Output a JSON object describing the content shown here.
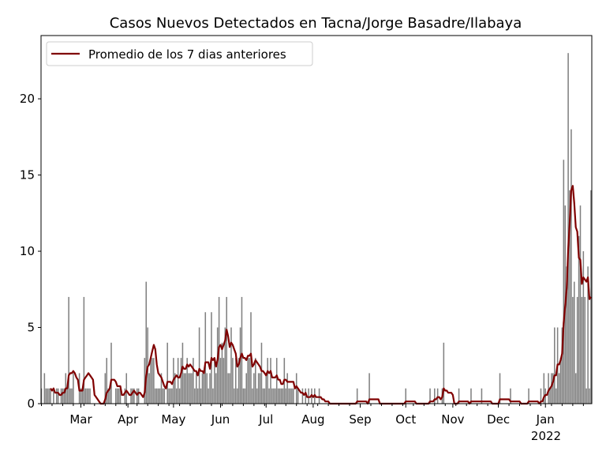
{
  "chart_data": {
    "type": "bar",
    "title": "Casos Nuevos Detectados en Tacna/Jorge Basadre/Ilabaya",
    "xlabel": "",
    "ylabel": "",
    "start_date": "2021-02-03",
    "ylim": [
      0,
      24.15
    ],
    "yticks": [
      0,
      5,
      10,
      15,
      20
    ],
    "xticks": [
      {
        "label": "Mar",
        "date": "2021-03-01"
      },
      {
        "label": "Apr",
        "date": "2021-04-01"
      },
      {
        "label": "May",
        "date": "2021-05-01"
      },
      {
        "label": "Jun",
        "date": "2021-06-01"
      },
      {
        "label": "Jul",
        "date": "2021-07-01"
      },
      {
        "label": "Aug",
        "date": "2021-08-01"
      },
      {
        "label": "Sep",
        "date": "2021-09-01"
      },
      {
        "label": "Oct",
        "date": "2021-10-01"
      },
      {
        "label": "Nov",
        "date": "2021-11-01"
      },
      {
        "label": "Dec",
        "date": "2021-12-01"
      },
      {
        "label": "Jan",
        "date": "2022-01-01"
      }
    ],
    "year_label": "2022",
    "bar_color": "#808080",
    "line_color": "#800000",
    "rolling_window": 7,
    "legend": {
      "label": "Promedio de los 7 dias anteriores",
      "placement": "upper-left"
    },
    "daily_values": [
      1,
      0,
      2,
      1,
      1,
      1,
      1,
      0,
      1,
      0,
      1,
      1,
      0,
      1,
      1,
      1,
      2,
      1,
      7,
      1,
      1,
      2,
      0,
      0,
      0,
      2,
      1,
      1,
      7,
      1,
      1,
      1,
      1,
      0,
      0,
      0,
      0,
      0,
      0,
      0,
      0,
      0,
      2,
      3,
      1,
      1,
      4,
      0,
      0,
      1,
      1,
      1,
      1,
      0,
      0,
      1,
      2,
      0,
      0,
      1,
      1,
      1,
      0,
      1,
      1,
      0,
      0,
      0,
      3,
      8,
      5,
      2,
      3,
      3,
      3,
      1,
      1,
      1,
      1,
      2,
      1,
      1,
      0,
      4,
      1,
      1,
      1,
      3,
      2,
      1,
      3,
      1,
      3,
      4,
      2,
      2,
      3,
      2,
      2,
      2,
      3,
      1,
      2,
      1,
      5,
      1,
      2,
      2,
      6,
      2,
      1,
      2,
      6,
      1,
      3,
      2,
      5,
      7,
      3,
      4,
      3,
      5,
      7,
      2,
      2,
      5,
      3,
      1,
      3,
      1,
      3,
      5,
      7,
      1,
      1,
      2,
      3,
      3,
      6,
      1,
      2,
      3,
      1,
      2,
      2,
      4,
      1,
      1,
      2,
      3,
      1,
      3,
      1,
      1,
      1,
      3,
      1,
      1,
      1,
      1,
      3,
      1,
      2,
      1,
      1,
      1,
      1,
      0,
      2,
      1,
      0,
      0,
      1,
      0,
      1,
      0,
      1,
      0,
      1,
      0,
      1,
      0,
      0,
      1,
      0,
      0,
      0,
      0,
      0,
      0,
      0,
      0,
      0,
      0,
      0,
      0,
      0,
      0,
      0,
      0,
      0,
      0,
      0,
      0,
      0,
      0,
      0,
      0,
      1,
      0,
      0,
      0,
      0,
      0,
      0,
      0,
      2,
      0,
      0,
      0,
      0,
      0,
      0,
      0,
      0,
      0,
      0,
      0,
      0,
      0,
      0,
      0,
      0,
      0,
      0,
      0,
      0,
      0,
      0,
      0,
      1,
      0,
      0,
      0,
      0,
      0,
      0,
      0,
      0,
      0,
      0,
      0,
      0,
      0,
      0,
      0,
      1,
      0,
      0,
      1,
      0,
      1,
      0,
      0,
      1,
      4,
      0,
      0,
      0,
      0,
      0,
      0,
      0,
      0,
      0,
      1,
      0,
      0,
      0,
      0,
      0,
      0,
      0,
      1,
      0,
      0,
      0,
      0,
      0,
      0,
      1,
      0,
      0,
      0,
      0,
      0,
      0,
      0,
      0,
      0,
      0,
      0,
      2,
      0,
      0,
      0,
      0,
      0,
      0,
      1,
      0,
      0,
      0,
      0,
      0,
      0,
      0,
      0,
      0,
      0,
      0,
      1,
      0,
      0,
      0,
      0,
      0,
      0,
      0,
      1,
      0,
      2,
      1,
      0,
      2,
      1,
      2,
      2,
      5,
      1,
      5,
      2,
      3,
      5,
      16,
      13,
      9,
      23,
      14,
      18,
      7,
      8,
      2,
      7,
      11,
      13,
      7,
      10,
      7,
      1,
      9,
      1,
      14
    ]
  }
}
